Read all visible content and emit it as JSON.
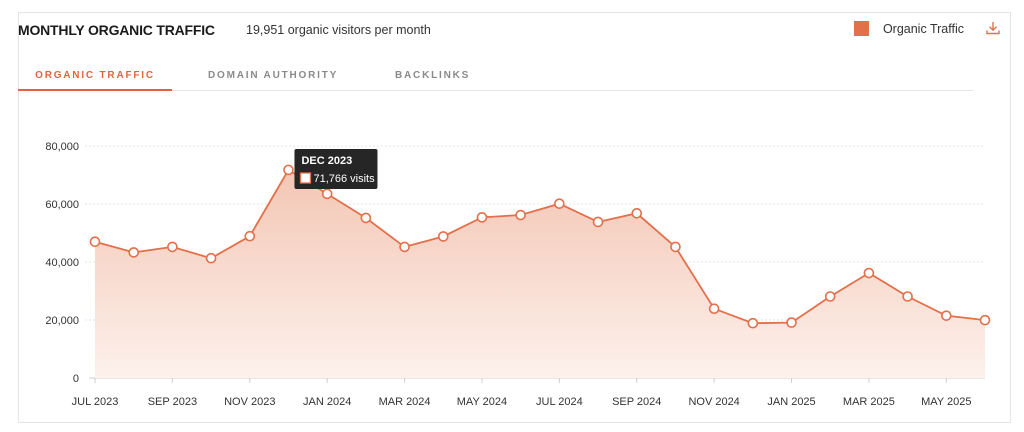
{
  "header": {
    "title": "MONTHLY ORGANIC TRAFFIC",
    "subtitle": "19,951 organic visitors per month",
    "legend_label": "Organic Traffic",
    "download_icon": "download-icon"
  },
  "tabs": [
    {
      "label": "ORGANIC TRAFFIC",
      "active": true
    },
    {
      "label": "DOMAIN AUTHORITY",
      "active": false
    },
    {
      "label": "BACKLINKS",
      "active": false
    }
  ],
  "colors": {
    "accent": "#e2704a",
    "fill_top": "#f3c6b4",
    "fill_bottom": "#fdf1ec",
    "grid": "#e3e3e3"
  },
  "tooltip": {
    "title": "DEC 2023",
    "value_text": "71,766 visits",
    "index": 5
  },
  "chart_data": {
    "type": "area",
    "x": [
      "JUL 2023",
      "AUG 2023",
      "SEP 2023",
      "OCT 2023",
      "NOV 2023",
      "DEC 2023",
      "JAN 2024",
      "FEB 2024",
      "MAR 2024",
      "APR 2024",
      "MAY 2024",
      "JUN 2024",
      "JUL 2024",
      "AUG 2024",
      "SEP 2024",
      "OCT 2024",
      "NOV 2024",
      "DEC 2024",
      "JAN 2025",
      "FEB 2025",
      "MAR 2025",
      "APR 2025",
      "MAY 2025",
      "JUN 2025"
    ],
    "x_tick_labels": [
      "JUL 2023",
      "SEP 2023",
      "NOV 2023",
      "JAN 2024",
      "MAR 2024",
      "MAY 2024",
      "JUL 2024",
      "SEP 2024",
      "NOV 2024",
      "JAN 2025",
      "MAR 2025",
      "MAY 2025"
    ],
    "series": [
      {
        "name": "Organic Traffic",
        "values": [
          47000,
          43300,
          45200,
          41300,
          48900,
          71766,
          63500,
          55200,
          45200,
          48800,
          55400,
          56200,
          60100,
          53800,
          56800,
          45200,
          23900,
          18900,
          19100,
          28100,
          36200,
          28100,
          21500,
          19951
        ]
      }
    ],
    "y_ticks": [
      0,
      20000,
      40000,
      60000,
      80000
    ],
    "y_tick_labels": [
      "0",
      "20,000",
      "40,000",
      "60,000",
      "80,000"
    ],
    "ylim": [
      0,
      80000
    ],
    "grid": true,
    "legend": "top-right"
  }
}
